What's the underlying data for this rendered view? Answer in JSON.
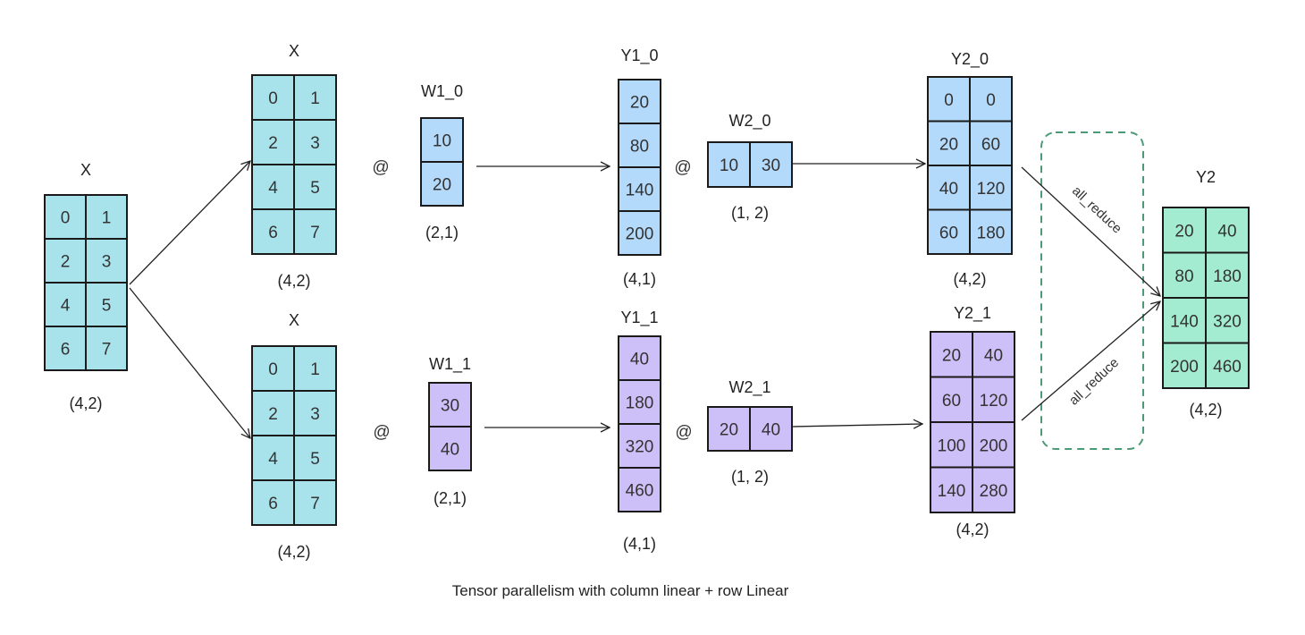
{
  "caption": "Tensor parallelism with column linear + row Linear",
  "colors": {
    "x_fill": "#a8e3ec",
    "w0_fill": "#b3d9fb",
    "w1_fill": "#cdbff8",
    "y2_fill": "#a3ecd2",
    "stroke": "#1a1a1a",
    "reduce_border": "#4c9a78"
  },
  "operator": "@",
  "reduce_label": "all_reduce",
  "matrices": {
    "x_input": {
      "title": "X",
      "shape": "(4,2)",
      "rows": [
        [
          "0",
          "1"
        ],
        [
          "2",
          "3"
        ],
        [
          "4",
          "5"
        ],
        [
          "6",
          "7"
        ]
      ]
    },
    "x_top": {
      "title": "X",
      "shape": "(4,2)",
      "rows": [
        [
          "0",
          "1"
        ],
        [
          "2",
          "3"
        ],
        [
          "4",
          "5"
        ],
        [
          "6",
          "7"
        ]
      ]
    },
    "x_bottom": {
      "title": "X",
      "shape": "(4,2)",
      "rows": [
        [
          "0",
          "1"
        ],
        [
          "2",
          "3"
        ],
        [
          "4",
          "5"
        ],
        [
          "6",
          "7"
        ]
      ]
    },
    "w1_0": {
      "title": "W1_0",
      "shape": "(2,1)",
      "rows": [
        [
          "10"
        ],
        [
          "20"
        ]
      ]
    },
    "w1_1": {
      "title": "W1_1",
      "shape": "(2,1)",
      "rows": [
        [
          "30"
        ],
        [
          "40"
        ]
      ]
    },
    "y1_0": {
      "title": "Y1_0",
      "shape": "(4,1)",
      "rows": [
        [
          "20"
        ],
        [
          "80"
        ],
        [
          "140"
        ],
        [
          "200"
        ]
      ]
    },
    "y1_1": {
      "title": "Y1_1",
      "shape": "(4,1)",
      "rows": [
        [
          "40"
        ],
        [
          "180"
        ],
        [
          "320"
        ],
        [
          "460"
        ]
      ]
    },
    "w2_0": {
      "title": "W2_0",
      "shape": "(1, 2)",
      "rows": [
        [
          "10",
          "30"
        ]
      ]
    },
    "w2_1": {
      "title": "W2_1",
      "shape": "(1, 2)",
      "rows": [
        [
          "20",
          "40"
        ]
      ]
    },
    "y2_0": {
      "title": "Y2_0",
      "shape": "(4,2)",
      "rows": [
        [
          "0",
          "0"
        ],
        [
          "20",
          "60"
        ],
        [
          "40",
          "120"
        ],
        [
          "60",
          "180"
        ]
      ]
    },
    "y2_1": {
      "title": "Y2_1",
      "shape": "(4,2)",
      "rows": [
        [
          "20",
          "40"
        ],
        [
          "60",
          "120"
        ],
        [
          "100",
          "200"
        ],
        [
          "140",
          "280"
        ]
      ]
    },
    "y2": {
      "title": "Y2",
      "shape": "(4,2)",
      "rows": [
        [
          "20",
          "40"
        ],
        [
          "80",
          "180"
        ],
        [
          "140",
          "320"
        ],
        [
          "200",
          "460"
        ]
      ]
    }
  }
}
